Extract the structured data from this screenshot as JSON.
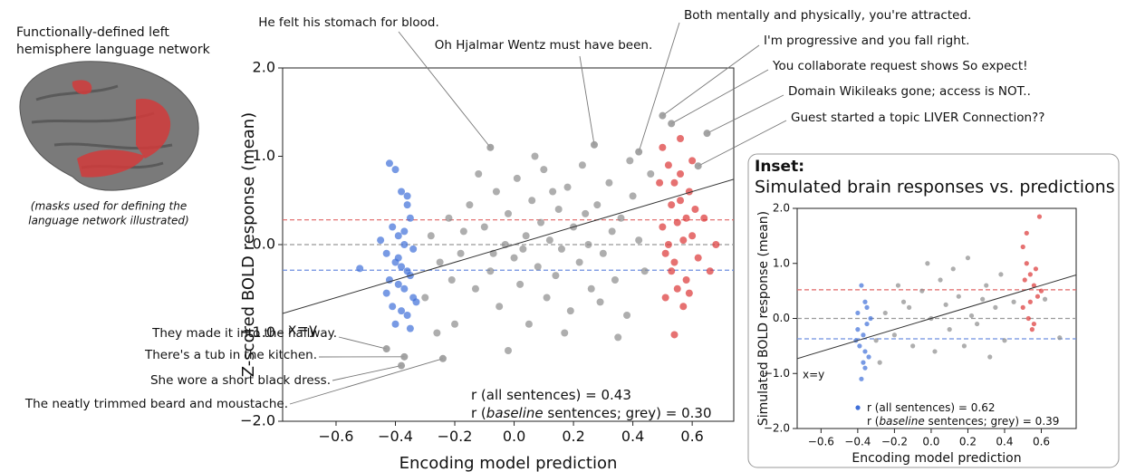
{
  "left_panel": {
    "heading_lines": [
      "Functionally-defined left",
      "hemisphere language network"
    ],
    "caption_lines": [
      "(masks used for defining the",
      "language network illustrated)"
    ]
  },
  "chart_data": [
    {
      "type": "scatter",
      "ylabel": "Z-scored BOLD response (mean)",
      "xlabel": "Encoding model prediction",
      "xlim": [
        -0.78,
        0.74
      ],
      "ylim": [
        -2.0,
        2.0
      ],
      "xticks": [
        {
          "value": -0.6,
          "label": "−0.6"
        },
        {
          "value": -0.4,
          "label": "−0.4"
        },
        {
          "value": -0.2,
          "label": "−0.2"
        },
        {
          "value": 0,
          "label": "0.0"
        },
        0.2,
        0.4,
        0.6
      ],
      "yticks": [
        {
          "value": 2,
          "label": "2.0"
        },
        {
          "value": 1,
          "label": "1.0"
        },
        {
          "value": 0,
          "label": "0.0"
        },
        {
          "value": -1,
          "label": "−1.0"
        },
        {
          "value": -2,
          "label": "−2.0"
        }
      ],
      "hlines": [
        {
          "value": 0.28,
          "color": "#e06666"
        },
        {
          "value": 0,
          "color": "#999999"
        },
        {
          "value": -0.29,
          "color": "#6d8fe0"
        }
      ],
      "identity_label": "x=y",
      "stats": [
        [
          "r (all sentences) = 0.43"
        ],
        [
          "r (",
          "baseline",
          " sentences; grey) = 0.30"
        ]
      ],
      "series": [
        {
          "color": "#3f6fd8",
          "x": [
            -0.42,
            -0.4,
            -0.38,
            -0.36,
            -0.35,
            -0.41,
            -0.39,
            -0.37,
            -0.34,
            -0.43,
            -0.4,
            -0.38,
            -0.36,
            -0.35,
            -0.42,
            -0.39,
            -0.37,
            -0.34,
            -0.41,
            -0.38,
            -0.36,
            -0.4,
            -0.35,
            -0.43,
            -0.37,
            -0.39,
            -0.36,
            -0.45,
            -0.52,
            -0.33
          ],
          "y": [
            0.92,
            0.85,
            0.6,
            0.45,
            0.3,
            0.2,
            0.1,
            0.0,
            -0.05,
            -0.1,
            -0.2,
            -0.25,
            -0.3,
            -0.35,
            -0.4,
            -0.45,
            -0.5,
            -0.6,
            -0.7,
            -0.75,
            -0.8,
            -0.9,
            -0.95,
            -0.55,
            0.15,
            -0.15,
            0.55,
            0.05,
            -0.27,
            -0.65
          ]
        },
        {
          "color": "#8c8c8c",
          "x": [
            -0.3,
            -0.28,
            -0.25,
            -0.22,
            -0.2,
            -0.18,
            -0.15,
            -0.13,
            -0.1,
            -0.08,
            -0.06,
            -0.05,
            -0.03,
            -0.02,
            0.0,
            0.01,
            0.02,
            0.04,
            0.05,
            0.06,
            0.08,
            0.09,
            0.1,
            0.11,
            0.12,
            0.14,
            0.15,
            0.16,
            0.18,
            0.19,
            0.2,
            0.22,
            0.23,
            0.25,
            0.26,
            0.28,
            0.3,
            0.32,
            0.34,
            0.36,
            0.38,
            0.4,
            0.42,
            0.44,
            0.46,
            -0.26,
            -0.12,
            0.07,
            0.17,
            0.33,
            -0.17,
            0.03,
            0.13,
            -0.07,
            0.24,
            -0.21,
            0.29,
            0.39,
            -0.02,
            0.35
          ],
          "y": [
            -0.6,
            0.1,
            -0.2,
            0.3,
            -0.9,
            -0.1,
            0.45,
            -0.5,
            0.2,
            -0.3,
            0.6,
            -0.7,
            0.0,
            0.35,
            -0.15,
            0.75,
            -0.45,
            0.1,
            -0.9,
            0.5,
            -0.25,
            0.25,
            0.85,
            -0.6,
            0.05,
            -0.35,
            0.4,
            -0.05,
            0.65,
            -0.75,
            0.2,
            -0.2,
            0.9,
            0.0,
            -0.5,
            0.45,
            -0.1,
            0.7,
            -0.4,
            0.3,
            -0.8,
            0.55,
            0.05,
            -0.3,
            0.8,
            -1.0,
            0.8,
            1.0,
            -1.0,
            0.15,
            0.15,
            -0.05,
            0.6,
            -0.1,
            0.35,
            -0.4,
            -0.65,
            0.95,
            -1.2,
            -1.05
          ]
        },
        {
          "color": "#dc3535",
          "x": [
            0.5,
            0.52,
            0.54,
            0.56,
            0.58,
            0.6,
            0.51,
            0.53,
            0.55,
            0.57,
            0.59,
            0.61,
            0.5,
            0.52,
            0.54,
            0.56,
            0.58,
            0.6,
            0.53,
            0.55,
            0.57,
            0.62,
            0.51,
            0.54,
            0.68,
            0.64,
            0.49,
            0.59,
            0.56,
            0.66
          ],
          "y": [
            1.1,
            0.9,
            0.7,
            0.5,
            0.3,
            0.1,
            -0.1,
            -0.3,
            -0.5,
            -0.7,
            0.6,
            0.4,
            0.2,
            0.0,
            -0.2,
            0.8,
            -0.4,
            0.95,
            0.45,
            0.25,
            0.05,
            -0.15,
            -0.6,
            -1.02,
            0.0,
            0.3,
            0.7,
            -0.55,
            1.2,
            -0.3
          ]
        }
      ],
      "annotations": [
        {
          "text": "He felt his stomach for blood.",
          "x": -0.08,
          "y": 1.1
        },
        {
          "text": "Oh Hjalmar Wentz must have been.",
          "x": 0.27,
          "y": 1.13
        },
        {
          "text": "Both mentally and physically, you're attracted.",
          "x": 0.42,
          "y": 1.05
        },
        {
          "text": "I'm progressive and you fall right.",
          "x": 0.5,
          "y": 1.46
        },
        {
          "text": "You collaborate request shows So expect!",
          "x": 0.53,
          "y": 1.37
        },
        {
          "text": "Domain Wikileaks gone; access is NOT..",
          "x": 0.65,
          "y": 1.26
        },
        {
          "text": "Guest started a topic LIVER Connection??",
          "x": 0.62,
          "y": 0.89
        },
        {
          "text": "They made it into the hallway.",
          "x": -0.43,
          "y": -1.18
        },
        {
          "text": "There's a tub in the kitchen.",
          "x": -0.37,
          "y": -1.27
        },
        {
          "text": "She wore a short black dress.",
          "x": -0.38,
          "y": -1.37
        },
        {
          "text": "The neatly trimmed beard and moustache.",
          "x": -0.24,
          "y": -1.29
        }
      ]
    },
    {
      "type": "scatter",
      "heading": "Inset:",
      "title": "Simulated brain responses vs. predictions",
      "ylabel": "Simulated BOLD response (mean)",
      "xlabel": "Encoding model prediction",
      "xlim": [
        -0.73,
        0.79
      ],
      "ylim": [
        -2.0,
        2.0
      ],
      "xticks": [
        {
          "value": -0.6,
          "label": "−0.6"
        },
        {
          "value": -0.4,
          "label": "−0.4"
        },
        {
          "value": -0.2,
          "label": "−0.2"
        },
        {
          "value": 0,
          "label": "0.0"
        },
        0.2,
        0.4,
        0.6
      ],
      "yticks": [
        {
          "value": 2,
          "label": "2.0"
        },
        {
          "value": 1,
          "label": "1.0"
        },
        {
          "value": 0,
          "label": "0.0"
        },
        {
          "value": -1,
          "label": "−1.0"
        },
        {
          "value": -2,
          "label": "−2.0"
        }
      ],
      "hlines": [
        {
          "value": 0.52,
          "color": "#e06666"
        },
        {
          "value": 0,
          "color": "#999999"
        },
        {
          "value": -0.37,
          "color": "#6d8fe0"
        }
      ],
      "identity_label": "x=y",
      "stats": [
        [
          "r (all sentences) = 0.62"
        ],
        [
          "r (",
          "baseline",
          " sentences; grey) = 0.39"
        ]
      ],
      "series": [
        {
          "color": "#3f6fd8",
          "x": [
            -0.38,
            -0.36,
            -0.4,
            -0.35,
            -0.37,
            -0.39,
            -0.34,
            -0.36,
            -0.38,
            -0.4,
            -0.33,
            -0.41,
            -0.36,
            -0.35,
            -0.37
          ],
          "y": [
            0.6,
            0.3,
            0.1,
            -0.1,
            -0.3,
            -0.5,
            -0.7,
            -0.9,
            -1.1,
            -0.2,
            0.0,
            -0.4,
            -0.6,
            0.2,
            -0.8
          ]
        },
        {
          "color": "#8c8c8c",
          "x": [
            -0.3,
            -0.25,
            -0.2,
            -0.15,
            -0.1,
            -0.05,
            0.0,
            0.05,
            0.1,
            0.15,
            0.2,
            0.25,
            0.3,
            0.35,
            0.4,
            0.45,
            -0.28,
            -0.12,
            0.02,
            0.12,
            0.22,
            0.32,
            -0.18,
            -0.02,
            0.08,
            0.18,
            0.28,
            0.38,
            0.62,
            0.7
          ],
          "y": [
            -0.4,
            0.1,
            -0.3,
            0.3,
            -0.5,
            0.5,
            0.0,
            0.7,
            -0.2,
            0.4,
            1.1,
            -0.1,
            0.6,
            0.2,
            -0.4,
            0.3,
            -0.8,
            0.2,
            -0.6,
            0.9,
            0.05,
            -0.7,
            0.6,
            1.0,
            0.25,
            -0.5,
            0.35,
            0.8,
            0.35,
            -0.35
          ]
        },
        {
          "color": "#dc3535",
          "x": [
            0.5,
            0.52,
            0.54,
            0.56,
            0.58,
            0.5,
            0.53,
            0.55,
            0.57,
            0.6,
            0.51,
            0.59,
            0.54,
            0.56,
            0.52
          ],
          "y": [
            1.3,
            1.0,
            0.8,
            0.6,
            0.4,
            0.2,
            0.0,
            -0.2,
            0.9,
            0.5,
            0.7,
            1.85,
            0.3,
            -0.1,
            1.55
          ]
        }
      ]
    }
  ]
}
